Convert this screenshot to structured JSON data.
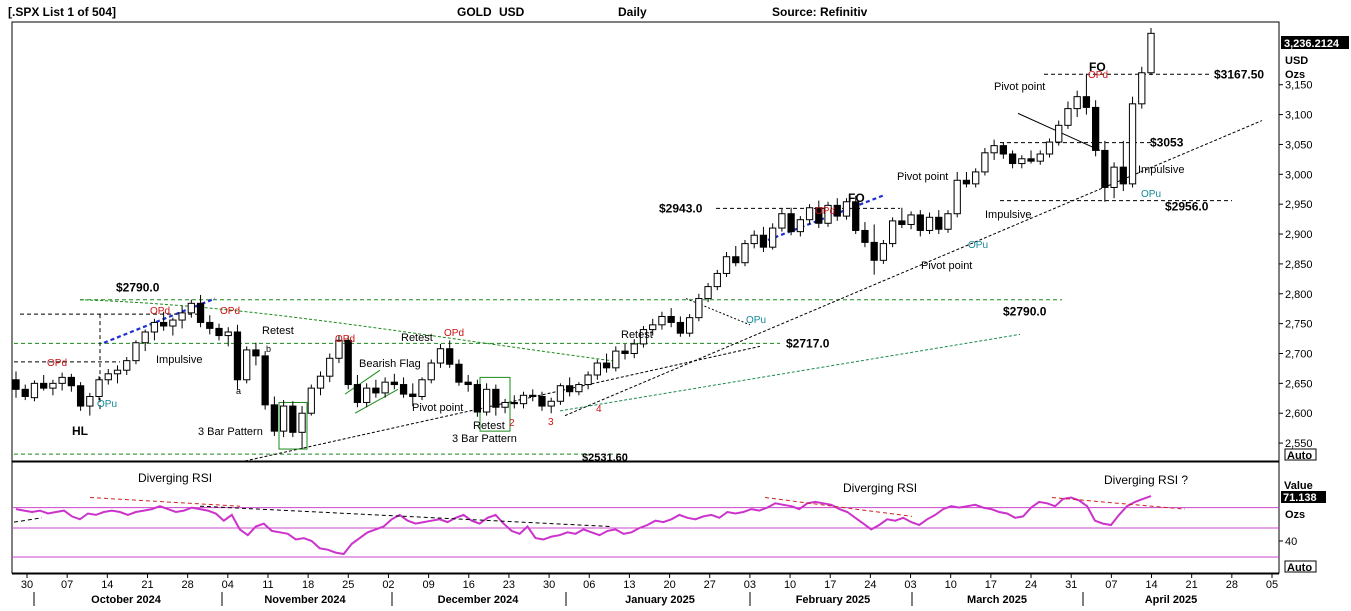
{
  "header": {
    "list": "[.SPX List 1 of 504]",
    "symbol": "GOLD",
    "currency": "USD",
    "period": "Daily",
    "source": "Source: Refinitiv"
  },
  "price_axis": {
    "last_price": "3,236.2124",
    "unit1": "USD",
    "unit2": "Ozs",
    "auto": "Auto"
  },
  "rsi_axis": {
    "value_label": "Value",
    "value": "71.138",
    "unit": "Ozs",
    "auto": "Auto"
  },
  "x_axis": {
    "days": [
      "30",
      "07",
      "14",
      "21",
      "28",
      "04",
      "11",
      "18",
      "25",
      "02",
      "09",
      "16",
      "23",
      "30",
      "06",
      "13",
      "20",
      "27",
      "03",
      "10",
      "17",
      "24",
      "03",
      "10",
      "17",
      "24",
      "31",
      "07",
      "14",
      "21",
      "28",
      "05"
    ],
    "months": [
      "October 2024",
      "November 2024",
      "December 2024",
      "January 2025",
      "February 2025",
      "March 2025",
      "April 2025"
    ]
  },
  "chart_data": {
    "type": "candlestick",
    "title": "GOLD USD Daily",
    "y_ticks": [
      2550,
      2600,
      2650,
      2700,
      2750,
      2800,
      2850,
      2900,
      2950,
      3000,
      3050,
      3100,
      3150
    ],
    "ylim": [
      2520,
      3255
    ],
    "x_range": [
      "2024-09-27",
      "2025-04-07"
    ],
    "levels": [
      {
        "label": "$2790.0",
        "value": 2790
      },
      {
        "label": "$2790.0",
        "value": 2790
      },
      {
        "label": "$2717.0",
        "value": 2717
      },
      {
        "label": "$2531.60",
        "value": 2531.6
      },
      {
        "label": "$2943.0",
        "value": 2943
      },
      {
        "label": "$2956.0",
        "value": 2956
      },
      {
        "label": "$3053",
        "value": 3053
      },
      {
        "label": "$3167.50",
        "value": 3167.5
      }
    ],
    "annotations": [
      "HL",
      "OPu",
      "OPd",
      "OPd",
      "OPd",
      "OPd",
      "OPd",
      "OPd",
      "OPd",
      "OPu",
      "OPu",
      "OPu",
      "Impulsive",
      "Impulsive",
      "Impulsive",
      "Retest",
      "Retest",
      "Retest",
      "Retest",
      "a",
      "b",
      "3 Bar Pattern",
      "3 Bar Pattern",
      "Bearish Flag",
      "Pivot point",
      "Pivot point",
      "Pivot point",
      "Pivot point",
      "FO",
      "FO",
      "2",
      "3",
      "4"
    ],
    "rsi": {
      "ticks": [
        40
      ],
      "labels": [
        "Diverging RSI",
        "Diverging RSI",
        "Diverging RSI ?"
      ],
      "values": [
        62,
        61,
        60,
        61,
        59,
        60,
        61,
        57,
        55,
        59,
        58,
        60,
        61,
        60,
        58,
        60,
        61,
        62,
        64,
        62,
        60,
        61,
        63,
        62,
        61,
        59,
        54,
        58,
        48,
        44,
        50,
        52,
        47,
        46,
        45,
        41,
        42,
        40,
        35,
        34,
        32,
        31,
        38,
        42,
        46,
        48,
        50,
        55,
        58,
        54,
        52,
        53,
        54,
        55,
        53,
        56,
        58,
        54,
        52,
        56,
        58,
        52,
        47,
        45,
        50,
        42,
        41,
        43,
        44,
        46,
        45,
        48,
        46,
        44,
        47,
        48,
        45,
        46,
        49,
        51,
        54,
        53,
        55,
        58,
        56,
        55,
        57,
        58,
        56,
        60,
        59,
        60,
        62,
        61,
        63,
        66,
        65,
        64,
        62,
        66,
        67,
        66,
        65,
        62,
        60,
        56,
        52,
        48,
        51,
        55,
        54,
        56,
        53,
        51,
        55,
        58,
        62,
        64,
        63,
        64,
        65,
        63,
        62,
        60,
        59,
        56,
        57,
        63,
        67,
        66,
        64,
        69,
        70,
        68,
        64,
        54,
        52,
        51,
        58,
        64,
        67,
        69,
        71
      ]
    },
    "candles": [
      [
        2656,
        2670,
        2626,
        2640
      ],
      [
        2640,
        2648,
        2622,
        2628
      ],
      [
        2626,
        2655,
        2620,
        2650
      ],
      [
        2650,
        2664,
        2638,
        2642
      ],
      [
        2642,
        2656,
        2630,
        2650
      ],
      [
        2650,
        2668,
        2638,
        2660
      ],
      [
        2660,
        2666,
        2636,
        2646
      ],
      [
        2646,
        2652,
        2604,
        2612
      ],
      [
        2612,
        2634,
        2596,
        2628
      ],
      [
        2628,
        2662,
        2622,
        2656
      ],
      [
        2656,
        2674,
        2648,
        2666
      ],
      [
        2666,
        2680,
        2650,
        2672
      ],
      [
        2672,
        2694,
        2664,
        2688
      ],
      [
        2688,
        2722,
        2682,
        2718
      ],
      [
        2718,
        2740,
        2704,
        2736
      ],
      [
        2736,
        2758,
        2722,
        2752
      ],
      [
        2752,
        2770,
        2738,
        2746
      ],
      [
        2746,
        2760,
        2730,
        2756
      ],
      [
        2756,
        2780,
        2742,
        2768
      ],
      [
        2768,
        2790,
        2760,
        2784
      ],
      [
        2784,
        2798,
        2744,
        2752
      ],
      [
        2752,
        2764,
        2732,
        2742
      ],
      [
        2742,
        2750,
        2722,
        2730
      ],
      [
        2730,
        2744,
        2712,
        2736
      ],
      [
        2736,
        2748,
        2640,
        2656
      ],
      [
        2656,
        2712,
        2650,
        2706
      ],
      [
        2706,
        2718,
        2680,
        2696
      ],
      [
        2696,
        2704,
        2606,
        2614
      ],
      [
        2614,
        2628,
        2562,
        2570
      ],
      [
        2570,
        2622,
        2560,
        2612
      ],
      [
        2612,
        2620,
        2560,
        2568
      ],
      [
        2568,
        2612,
        2540,
        2600
      ],
      [
        2600,
        2648,
        2596,
        2642
      ],
      [
        2642,
        2670,
        2630,
        2662
      ],
      [
        2662,
        2700,
        2652,
        2692
      ],
      [
        2692,
        2730,
        2684,
        2722
      ],
      [
        2722,
        2730,
        2640,
        2648
      ],
      [
        2648,
        2664,
        2610,
        2618
      ],
      [
        2618,
        2650,
        2610,
        2642
      ],
      [
        2642,
        2656,
        2626,
        2634
      ],
      [
        2634,
        2660,
        2626,
        2652
      ],
      [
        2652,
        2666,
        2640,
        2648
      ],
      [
        2648,
        2660,
        2626,
        2632
      ],
      [
        2632,
        2650,
        2612,
        2628
      ],
      [
        2628,
        2660,
        2622,
        2656
      ],
      [
        2656,
        2690,
        2650,
        2684
      ],
      [
        2684,
        2716,
        2676,
        2708
      ],
      [
        2708,
        2722,
        2676,
        2682
      ],
      [
        2682,
        2690,
        2646,
        2652
      ],
      [
        2652,
        2664,
        2636,
        2648
      ],
      [
        2648,
        2656,
        2594,
        2602
      ],
      [
        2602,
        2650,
        2596,
        2640
      ],
      [
        2640,
        2648,
        2596,
        2610
      ],
      [
        2610,
        2624,
        2600,
        2618
      ],
      [
        2618,
        2630,
        2608,
        2616
      ],
      [
        2616,
        2636,
        2608,
        2630
      ],
      [
        2630,
        2640,
        2620,
        2628
      ],
      [
        2628,
        2636,
        2604,
        2612
      ],
      [
        2612,
        2626,
        2600,
        2620
      ],
      [
        2620,
        2650,
        2614,
        2646
      ],
      [
        2646,
        2660,
        2628,
        2636
      ],
      [
        2636,
        2652,
        2630,
        2648
      ],
      [
        2648,
        2670,
        2640,
        2664
      ],
      [
        2664,
        2690,
        2656,
        2684
      ],
      [
        2684,
        2700,
        2668,
        2676
      ],
      [
        2676,
        2712,
        2670,
        2704
      ],
      [
        2704,
        2716,
        2690,
        2700
      ],
      [
        2700,
        2724,
        2692,
        2716
      ],
      [
        2716,
        2746,
        2710,
        2740
      ],
      [
        2740,
        2758,
        2730,
        2748
      ],
      [
        2748,
        2770,
        2740,
        2762
      ],
      [
        2762,
        2776,
        2744,
        2752
      ],
      [
        2752,
        2762,
        2728,
        2734
      ],
      [
        2734,
        2766,
        2728,
        2760
      ],
      [
        2760,
        2800,
        2754,
        2792
      ],
      [
        2792,
        2818,
        2786,
        2812
      ],
      [
        2812,
        2840,
        2806,
        2834
      ],
      [
        2834,
        2870,
        2828,
        2862
      ],
      [
        2862,
        2880,
        2846,
        2852
      ],
      [
        2852,
        2890,
        2846,
        2884
      ],
      [
        2884,
        2906,
        2876,
        2898
      ],
      [
        2898,
        2912,
        2870,
        2878
      ],
      [
        2878,
        2918,
        2874,
        2910
      ],
      [
        2910,
        2942,
        2904,
        2934
      ],
      [
        2934,
        2944,
        2898,
        2904
      ],
      [
        2904,
        2930,
        2896,
        2924
      ],
      [
        2924,
        2950,
        2916,
        2944
      ],
      [
        2944,
        2956,
        2910,
        2918
      ],
      [
        2918,
        2954,
        2912,
        2948
      ],
      [
        2948,
        2960,
        2922,
        2930
      ],
      [
        2930,
        2960,
        2924,
        2954
      ],
      [
        2954,
        2964,
        2900,
        2906
      ],
      [
        2906,
        2920,
        2878,
        2886
      ],
      [
        2886,
        2916,
        2832,
        2856
      ],
      [
        2856,
        2890,
        2850,
        2884
      ],
      [
        2884,
        2928,
        2878,
        2922
      ],
      [
        2922,
        2944,
        2910,
        2916
      ],
      [
        2916,
        2938,
        2908,
        2932
      ],
      [
        2932,
        2940,
        2896,
        2906
      ],
      [
        2906,
        2936,
        2900,
        2928
      ],
      [
        2928,
        2940,
        2900,
        2908
      ],
      [
        2908,
        2940,
        2902,
        2934
      ],
      [
        2934,
        3004,
        2928,
        2990
      ],
      [
        2990,
        3004,
        2978,
        2984
      ],
      [
        2984,
        3010,
        2978,
        3004
      ],
      [
        3004,
        3044,
        2998,
        3036
      ],
      [
        3036,
        3058,
        3024,
        3048
      ],
      [
        3048,
        3054,
        3026,
        3034
      ],
      [
        3034,
        3040,
        3010,
        3018
      ],
      [
        3018,
        3032,
        3010,
        3026
      ],
      [
        3026,
        3040,
        3018,
        3022
      ],
      [
        3022,
        3040,
        3016,
        3034
      ],
      [
        3034,
        3060,
        3028,
        3054
      ],
      [
        3054,
        3090,
        3048,
        3082
      ],
      [
        3082,
        3122,
        3076,
        3110
      ],
      [
        3110,
        3140,
        3096,
        3130
      ],
      [
        3130,
        3168,
        3100,
        3112
      ],
      [
        3112,
        3124,
        3030,
        3040
      ],
      [
        3040,
        3056,
        2954,
        2978
      ],
      [
        2978,
        3020,
        2960,
        3012
      ],
      [
        3012,
        3056,
        2972,
        2984
      ],
      [
        2984,
        3130,
        2978,
        3118
      ],
      [
        3118,
        3180,
        3110,
        3170
      ],
      [
        3170,
        3245,
        3166,
        3236
      ]
    ]
  }
}
